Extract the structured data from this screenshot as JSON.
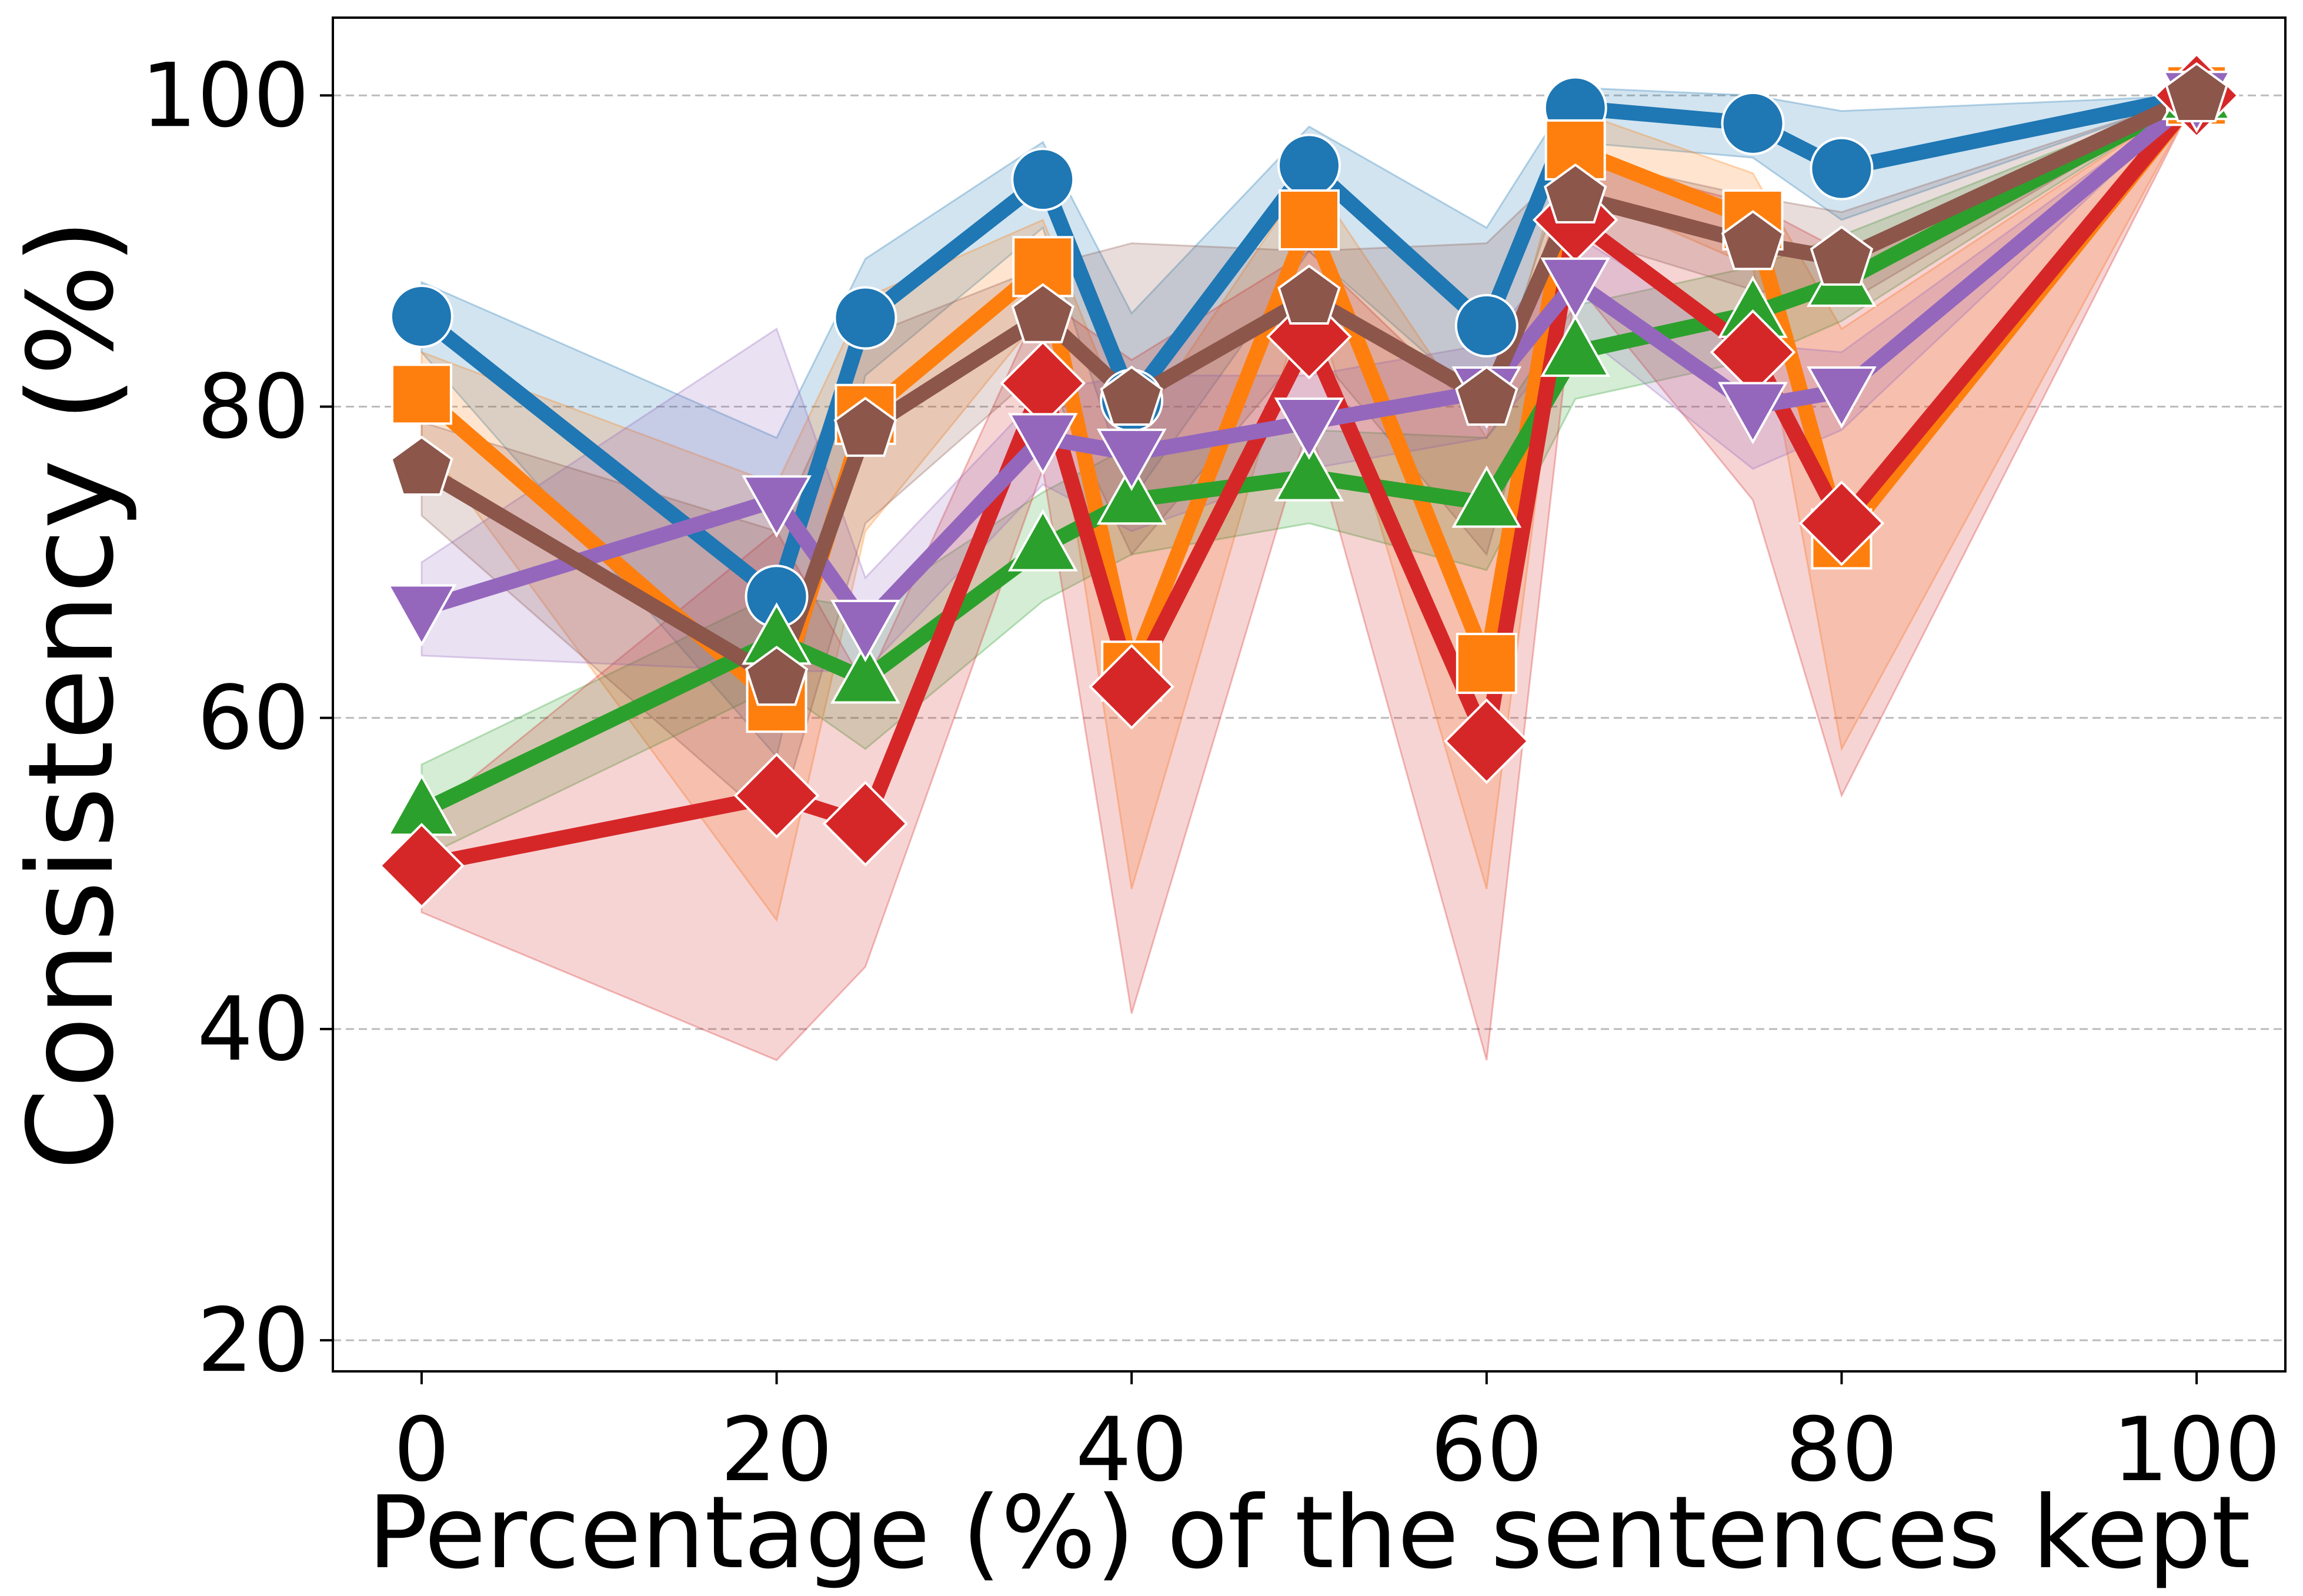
{
  "chart_data": {
    "type": "line",
    "xlabel": "Percentage (%) of the sentences kept",
    "ylabel": "Consistency (%)",
    "xlim": [
      -5,
      105
    ],
    "ylim": [
      18,
      105
    ],
    "xticks": [
      0,
      20,
      40,
      60,
      80,
      100
    ],
    "yticks": [
      20,
      40,
      60,
      80,
      100
    ],
    "grid": "horizontal dashed",
    "legend": "none",
    "x": [
      0,
      20,
      25,
      35,
      40,
      50,
      60,
      65,
      75,
      80,
      100
    ],
    "series": [
      {
        "name": "blue",
        "color": "#1f77b4",
        "marker": "circle",
        "values": [
          85.8,
          67.8,
          85.7,
          94.6,
          80.4,
          95.5,
          85.2,
          99.2,
          98.2,
          95.3,
          100
        ],
        "lower": [
          83.5,
          57.5,
          82.0,
          91.5,
          74.0,
          90.0,
          80.0,
          97.0,
          96.0,
          92.0,
          100
        ],
        "upper": [
          88.0,
          78.0,
          89.5,
          97.0,
          86.0,
          98.0,
          91.5,
          100.5,
          100.0,
          99.0,
          100
        ]
      },
      {
        "name": "orange",
        "color": "#ff7f0e",
        "marker": "square",
        "values": [
          80.8,
          61.0,
          79.5,
          89.0,
          63.0,
          92.0,
          63.5,
          96.5,
          92.0,
          71.5,
          100
        ],
        "lower": [
          78.0,
          47.0,
          72.0,
          86.0,
          49.0,
          88.0,
          49.0,
          94.0,
          89.0,
          58.0,
          100
        ],
        "upper": [
          83.5,
          75.0,
          87.0,
          92.0,
          78.0,
          95.0,
          78.0,
          99.0,
          95.0,
          85.0,
          100
        ]
      },
      {
        "name": "green",
        "color": "#2ca02c",
        "marker": "triangle-up",
        "values": [
          54.0,
          65.0,
          62.5,
          71.0,
          74.0,
          75.5,
          73.8,
          83.5,
          86.0,
          88.0,
          100
        ],
        "lower": [
          51.0,
          62.0,
          58.0,
          67.5,
          70.5,
          72.5,
          69.5,
          80.5,
          83.0,
          85.5,
          100
        ],
        "upper": [
          57.0,
          68.0,
          67.0,
          74.5,
          77.5,
          78.5,
          78.0,
          86.5,
          89.0,
          91.0,
          100
        ]
      },
      {
        "name": "red",
        "color": "#d62728",
        "marker": "diamond",
        "values": [
          50.5,
          55.0,
          53.2,
          81.5,
          62.0,
          84.5,
          58.5,
          92.0,
          83.5,
          72.5,
          100
        ],
        "lower": [
          47.5,
          38.0,
          44.0,
          76.0,
          41.0,
          79.0,
          38.0,
          88.0,
          74.0,
          55.0,
          100
        ],
        "upper": [
          53.5,
          72.0,
          62.0,
          87.0,
          83.0,
          90.0,
          79.0,
          96.0,
          93.0,
          90.0,
          100
        ]
      },
      {
        "name": "purple",
        "color": "#9467bd",
        "marker": "triangle-down",
        "values": [
          67.0,
          74.0,
          66.0,
          78.0,
          77.0,
          79.0,
          81.0,
          88.0,
          80.0,
          81.0,
          100
        ],
        "lower": [
          64.0,
          63.0,
          63.0,
          75.0,
          72.0,
          76.0,
          78.0,
          85.0,
          76.0,
          78.5,
          100
        ],
        "upper": [
          70.0,
          85.0,
          69.0,
          81.0,
          82.0,
          82.0,
          84.0,
          91.0,
          84.0,
          83.5,
          100
        ]
      },
      {
        "name": "brown",
        "color": "#8c564b",
        "marker": "pentagon",
        "values": [
          76.0,
          62.5,
          78.5,
          85.8,
          80.5,
          87.0,
          80.5,
          93.5,
          90.5,
          89.5,
          100
        ],
        "lower": [
          73.0,
          53.0,
          72.5,
          82.5,
          70.5,
          84.0,
          70.5,
          91.0,
          87.5,
          86.5,
          100
        ],
        "upper": [
          79.0,
          72.0,
          84.5,
          89.0,
          90.5,
          90.0,
          90.5,
          96.0,
          93.5,
          92.5,
          100
        ]
      }
    ]
  }
}
